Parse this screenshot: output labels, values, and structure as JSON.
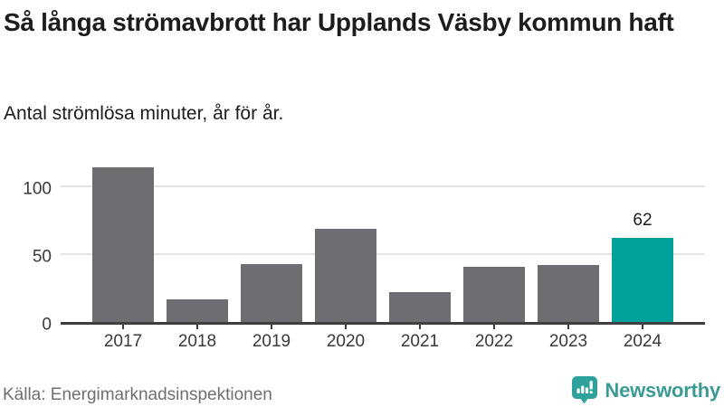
{
  "header": {
    "title": "Så långa strömavbrott har Upplands Väsby kommun haft",
    "subtitle": "Antal strömlösa minuter, år för år."
  },
  "chart_data": {
    "type": "bar",
    "title": "Så långa strömavbrott har Upplands Väsby kommun haft",
    "subtitle": "Antal strömlösa minuter, år för år.",
    "categories": [
      "2017",
      "2018",
      "2019",
      "2020",
      "2021",
      "2022",
      "2023",
      "2024"
    ],
    "values": [
      114,
      17,
      43,
      69,
      22,
      41,
      42,
      62
    ],
    "value_labels": [
      "",
      "",
      "",
      "",
      "",
      "",
      "",
      "62"
    ],
    "highlight_index": 7,
    "xlabel": "",
    "ylabel": "",
    "yticks": [
      0,
      50,
      100
    ],
    "ylim": [
      0,
      116
    ],
    "grid": "horizontal-y",
    "legend": "none",
    "bar_color": "#6e6e72",
    "highlight_color": "#00a19a",
    "gridline_color": "#e3e3e3",
    "axis_color": "#3f3f42"
  },
  "footer": {
    "source": "Källa: Energimarknadsinspektionen",
    "brand_name": "Newsworthy",
    "brand_icon": "speech-bubble-bar-chart-exclamation-icon"
  },
  "colors": {
    "background": "#ffffff",
    "bar_gray": "#6e6e72",
    "bar_teal": "#00a19a",
    "gridline": "#e3e3e3",
    "axis": "#3f3f42",
    "title_text": "#1d1d1b",
    "tick_text": "#3a3a3a",
    "source_text": "#6f6f6f",
    "brand_teal_badge": "#2fa39b",
    "brand_teal_text": "#3a9b95"
  }
}
